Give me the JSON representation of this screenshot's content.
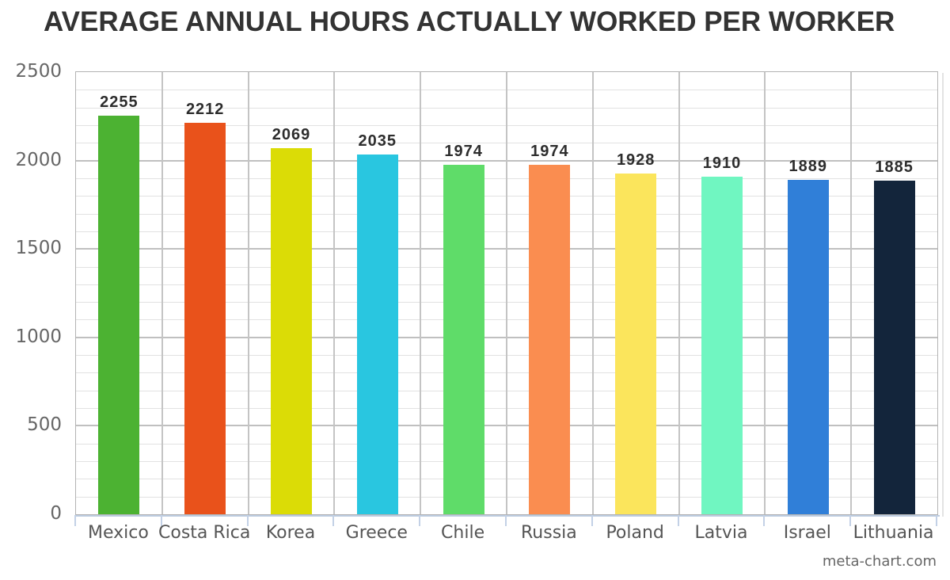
{
  "title": {
    "text": "AVERAGE ANNUAL HOURS ACTUALLY WORKED PER WORKER",
    "color": "#333333"
  },
  "watermark": {
    "text": "meta-chart.com",
    "color": "#666666"
  },
  "chart_data": {
    "type": "bar",
    "title": "AVERAGE ANNUAL HOURS ACTUALLY WORKED PER WORKER",
    "categories": [
      "Mexico",
      "Costa Rica",
      "Korea",
      "Greece",
      "Chile",
      "Russia",
      "Poland",
      "Latvia",
      "Israel",
      "Lithuania"
    ],
    "values": [
      2255,
      2212,
      2069,
      2035,
      1974,
      1974,
      1928,
      1910,
      1889,
      1885
    ],
    "bar_colors": [
      "#4cb232",
      "#e9521b",
      "#dbdc06",
      "#29c6e0",
      "#5fdc69",
      "#fa8d50",
      "#fbe55c",
      "#70f6c1",
      "#307fd8",
      "#13253b"
    ],
    "xlabel": "",
    "ylabel": "",
    "ylim": [
      0,
      2500
    ],
    "y_major_ticks": [
      0,
      500,
      1000,
      1500,
      2000,
      2500
    ],
    "y_minor_step": 100,
    "grid": true,
    "legend_position": "none",
    "value_labels_shown": true
  },
  "axis_style": {
    "major_grid_color": "#c0c0c0",
    "minor_grid_color": "#e2e2e2",
    "category_grid_color": "#c4c4c4",
    "baseline_color": "#bccbdf",
    "tick_color": "#c3d1e6",
    "y_tick_label_color": "#666666",
    "x_tick_label_color": "#555555",
    "value_label_color": "#2d2d2d"
  }
}
